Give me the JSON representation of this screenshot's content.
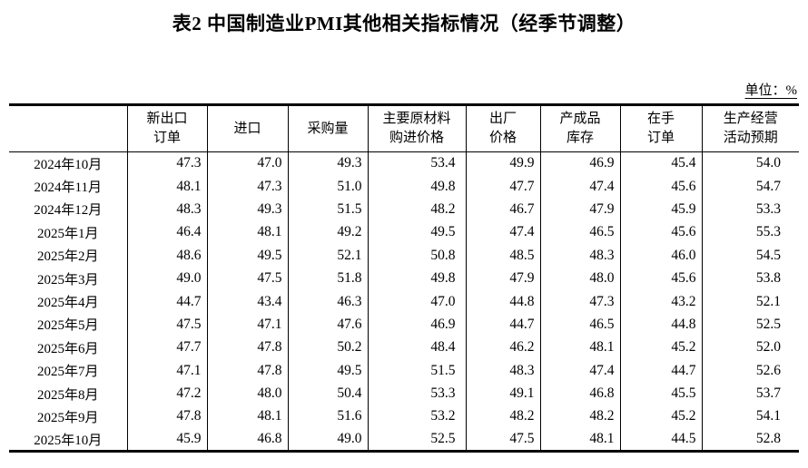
{
  "page": {
    "title": "表2 中国制造业PMI其他相关指标情况（经季节调整）",
    "unit_label": "单位：%"
  },
  "chart_data": {
    "type": "table",
    "columns": [
      "",
      "新出口\n订单",
      "进口",
      "采购量",
      "主要原材料\n购进价格",
      "出厂\n价格",
      "产成品\n库存",
      "在手\n订单",
      "生产经营\n活动预期"
    ],
    "rows": [
      {
        "month": "2024年10月",
        "values": [
          "47.3",
          "47.0",
          "49.3",
          "53.4",
          "49.9",
          "46.9",
          "45.4",
          "54.0"
        ]
      },
      {
        "month": "2024年11月",
        "values": [
          "48.1",
          "47.3",
          "51.0",
          "49.8",
          "47.7",
          "47.4",
          "45.6",
          "54.7"
        ]
      },
      {
        "month": "2024年12月",
        "values": [
          "48.3",
          "49.3",
          "51.5",
          "48.2",
          "46.7",
          "47.9",
          "45.9",
          "53.3"
        ]
      },
      {
        "month": "2025年1月",
        "values": [
          "46.4",
          "48.1",
          "49.2",
          "49.5",
          "47.4",
          "46.5",
          "45.6",
          "55.3"
        ]
      },
      {
        "month": "2025年2月",
        "values": [
          "48.6",
          "49.5",
          "52.1",
          "50.8",
          "48.5",
          "48.3",
          "46.0",
          "54.5"
        ]
      },
      {
        "month": "2025年3月",
        "values": [
          "49.0",
          "47.5",
          "51.8",
          "49.8",
          "47.9",
          "48.0",
          "45.6",
          "53.8"
        ]
      },
      {
        "month": "2025年4月",
        "values": [
          "44.7",
          "43.4",
          "46.3",
          "47.0",
          "44.8",
          "47.3",
          "43.2",
          "52.1"
        ]
      },
      {
        "month": "2025年5月",
        "values": [
          "47.5",
          "47.1",
          "47.6",
          "46.9",
          "44.7",
          "46.5",
          "44.8",
          "52.5"
        ]
      },
      {
        "month": "2025年6月",
        "values": [
          "47.7",
          "47.8",
          "50.2",
          "48.4",
          "46.2",
          "48.1",
          "45.2",
          "52.0"
        ]
      },
      {
        "month": "2025年7月",
        "values": [
          "47.1",
          "47.8",
          "49.5",
          "51.5",
          "48.3",
          "47.4",
          "44.7",
          "52.6"
        ]
      },
      {
        "month": "2025年8月",
        "values": [
          "47.2",
          "48.0",
          "50.4",
          "53.3",
          "49.1",
          "46.8",
          "45.5",
          "53.7"
        ]
      },
      {
        "month": "2025年9月",
        "values": [
          "47.8",
          "48.1",
          "51.6",
          "53.2",
          "48.2",
          "48.2",
          "45.2",
          "54.1"
        ]
      },
      {
        "month": "2025年10月",
        "values": [
          "45.9",
          "46.8",
          "49.0",
          "52.5",
          "47.5",
          "48.1",
          "44.5",
          "52.8"
        ]
      }
    ]
  }
}
